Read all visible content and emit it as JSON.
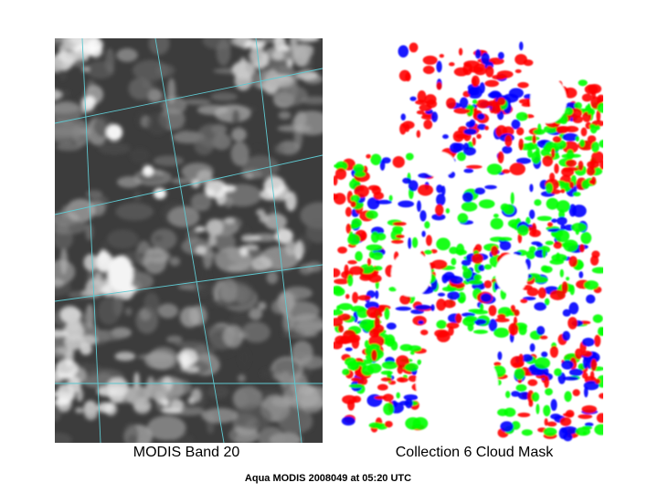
{
  "panels": [
    {
      "caption": "MODIS Band 20"
    },
    {
      "caption": "Collection 6 Cloud Mask"
    }
  ],
  "footer": "Aqua MODIS 2008049 at 05:20 UTC"
}
